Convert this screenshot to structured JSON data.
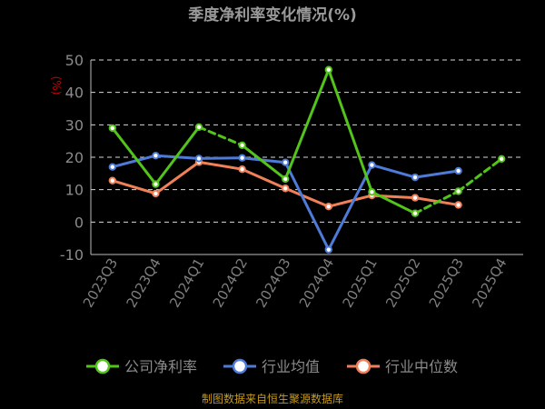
{
  "chart_data": {
    "type": "line",
    "title": "季度净利率变化情况(%)",
    "y_unit_label": "(%)",
    "categories": [
      "2023Q3",
      "2023Q4",
      "2024Q1",
      "2024Q2",
      "2024Q3",
      "2024Q4",
      "2025Q1",
      "2025Q2",
      "2025Q3",
      "2025Q4"
    ],
    "ylim": [
      -10,
      50
    ],
    "yticks": [
      -10,
      0,
      10,
      20,
      30,
      40,
      50
    ],
    "grid": true,
    "legend_position": "bottom",
    "series": [
      {
        "name": "公司净利率",
        "color": "#52c41a",
        "values": [
          29.0,
          11.7,
          29.3,
          23.7,
          13.3,
          47.0,
          9.3,
          2.7,
          9.5,
          19.5
        ],
        "dashed_segments": [
          2,
          7,
          8
        ]
      },
      {
        "name": "行业均值",
        "color": "#4e7bd8",
        "values": [
          17.0,
          20.5,
          19.6,
          19.8,
          18.4,
          -8.5,
          17.6,
          13.8,
          15.8,
          null
        ]
      },
      {
        "name": "行业中位数",
        "color": "#f08058",
        "values": [
          12.8,
          8.8,
          18.5,
          16.3,
          10.4,
          4.8,
          8.2,
          7.5,
          5.3,
          null
        ]
      }
    ]
  },
  "source_text": "制图数据来自恒生聚源数据库"
}
